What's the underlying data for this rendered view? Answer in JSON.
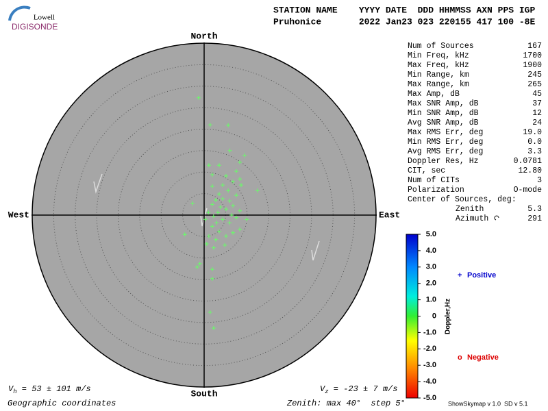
{
  "logo": {
    "top": "Lowell",
    "bottom": "DIGISONDE"
  },
  "header": {
    "line1": "STATION NAME    YYYY DATE  DDD HHMMSS AXN PPS IGP",
    "line2": "Pruhonice       2022 Jan23 023 220155 417 100 -8E"
  },
  "stats": [
    [
      "Num of Sources",
      "167"
    ],
    [
      "Min Freq, kHz",
      "1700"
    ],
    [
      "Max Freq, kHz",
      "1900"
    ],
    [
      "Min Range, km",
      "245"
    ],
    [
      "Max Range, km",
      "265"
    ],
    [
      "Max Amp, dB",
      "45"
    ],
    [
      "Max SNR Amp, dB",
      "37"
    ],
    [
      "Min SNR Amp, dB",
      "12"
    ],
    [
      "Avg SNR Amp, dB",
      "24"
    ],
    [
      "Max RMS Err, deg",
      "19.0"
    ],
    [
      "Min RMS Err, deg",
      "0.0"
    ],
    [
      "Avg RMS Err, deg",
      "3.3"
    ],
    [
      "Doppler Res, Hz",
      "0.0781"
    ],
    [
      "CIT, sec",
      "12.80"
    ],
    [
      "Num of CITs",
      "3"
    ],
    [
      "Polarization",
      "O-mode"
    ]
  ],
  "center": {
    "title": "Center of Sources, deg:",
    "zenith_label": "Zenith",
    "zenith": "5.3",
    "azimuth_label": "Azimuth",
    "azimuth": "291"
  },
  "chart_data": {
    "type": "scatter",
    "compass": {
      "north": "North",
      "south": "South",
      "west": "West",
      "east": "East"
    },
    "xlim": [
      -40,
      40
    ],
    "ylim": [
      -40,
      40
    ],
    "grid_step": 5,
    "color": "#66ff66",
    "x": [
      -1.3,
      1.4,
      5.6,
      6.0,
      9.4,
      1.1,
      8.3,
      3.5,
      7.5,
      1.9,
      5.1,
      8.3,
      6.7,
      12.4,
      8.6,
      4.3,
      1.9,
      5.6,
      3.5,
      7.5,
      4.3,
      2.7,
      5.9,
      -2.7,
      1.9,
      6.7,
      3.8,
      5.1,
      8.3,
      3.2,
      6.4,
      2.2,
      7.5,
      9.9,
      4.3,
      2.9,
      5.9,
      1.9,
      8.3,
      3.5,
      -4.5,
      1.1,
      5.1,
      6.7,
      2.7,
      0.6,
      4.8,
      2.2,
      -1.0,
      -1.6,
      1.9,
      1.9,
      1.4,
      2.2,
      0.3,
      1.0
    ],
    "values": [
      27.3,
      21.0,
      20.9,
      15.0,
      13.9,
      11.6,
      12.3,
      11.6,
      10.2,
      9.4,
      9.1,
      8.4,
      7.8,
      5.7,
      7.0,
      7.0,
      6.7,
      5.7,
      4.9,
      4.6,
      3.8,
      3.5,
      3.3,
      2.7,
      2.5,
      2.2,
      1.9,
      1.4,
      1.0,
      0.6,
      0,
      -0.3,
      -0.6,
      -1.0,
      -1.0,
      -1.8,
      -1.8,
      -2.6,
      -3.3,
      -3.8,
      -4.5,
      -4.9,
      -4.9,
      -4.1,
      -5.7,
      -6.7,
      -7.0,
      -7.6,
      -11.3,
      -12.1,
      -12.6,
      -14.8,
      -22.6,
      -26.3,
      -1.0,
      0.6
    ],
    "colorbar": {
      "label": "Doppler,Hz",
      "lim": [
        -5,
        5
      ],
      "ticks": [
        {
          "value": 5,
          "label": "5.0"
        },
        {
          "value": 4,
          "label": "4.0"
        },
        {
          "value": 3,
          "label": "3.0"
        },
        {
          "value": 2,
          "label": "2.0"
        },
        {
          "value": 1,
          "label": "1.0"
        },
        0,
        {
          "value": -1,
          "label": "-1.0"
        },
        {
          "value": -2,
          "label": "-2.0"
        },
        {
          "value": -3,
          "label": "-3.0"
        },
        {
          "value": -4,
          "label": "-4.0"
        },
        {
          "value": -5,
          "label": "-5.0"
        }
      ]
    },
    "legend": {
      "positive_symbol": "+",
      "positive": "Positive",
      "negative_symbol": "o",
      "negative": "Negative"
    }
  },
  "footer": {
    "vh_symbol": "V",
    "vh_sub": "h",
    "vh_text": " = 53 ± 101 m/s",
    "vz_symbol": "V",
    "vz_sub": "z",
    "vz_text": " = -23 ± 7 m/s",
    "coords": "Geographic coordinates",
    "zenith": "Zenith: max 40°  step 5°",
    "version": "ShowSkymap v 1.0  SD v 5.1"
  }
}
